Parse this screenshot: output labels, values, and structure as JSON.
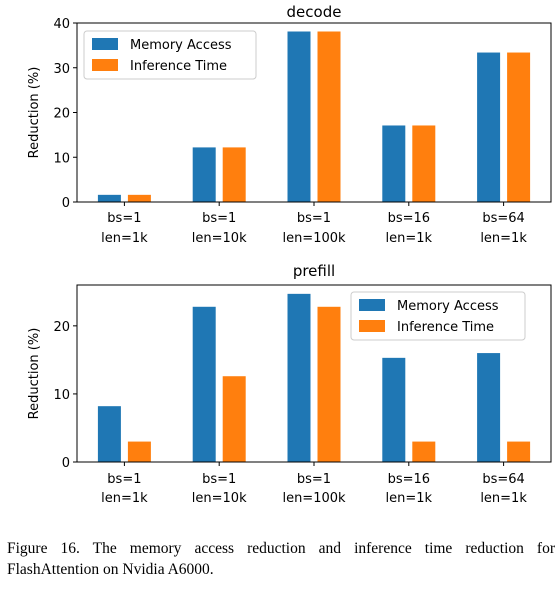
{
  "chart_data": [
    {
      "type": "bar",
      "title": "decode",
      "ylabel": "Reduction (%)",
      "categories": [
        [
          "bs=1",
          "len=1k"
        ],
        [
          "bs=1",
          "len=10k"
        ],
        [
          "bs=1",
          "len=100k"
        ],
        [
          "bs=16",
          "len=1k"
        ],
        [
          "bs=64",
          "len=1k"
        ]
      ],
      "series": [
        {
          "name": "Memory Access",
          "color": "#1f77b4",
          "values": [
            1.6,
            12.2,
            38.1,
            17.1,
            33.4
          ]
        },
        {
          "name": "Inference Time",
          "color": "#ff7f0e",
          "values": [
            1.6,
            12.2,
            38.1,
            17.1,
            33.4
          ]
        }
      ],
      "ylim": [
        0,
        40
      ],
      "yticks": [
        0,
        10,
        20,
        30,
        40
      ],
      "legend": "top-left",
      "grid": false
    },
    {
      "type": "bar",
      "title": "prefill",
      "ylabel": "Reduction (%)",
      "categories": [
        [
          "bs=1",
          "len=1k"
        ],
        [
          "bs=1",
          "len=10k"
        ],
        [
          "bs=1",
          "len=100k"
        ],
        [
          "bs=16",
          "len=1k"
        ],
        [
          "bs=64",
          "len=1k"
        ]
      ],
      "series": [
        {
          "name": "Memory Access",
          "color": "#1f77b4",
          "values": [
            8.2,
            22.8,
            24.7,
            15.3,
            16.0
          ]
        },
        {
          "name": "Inference Time",
          "color": "#ff7f0e",
          "values": [
            3.0,
            12.6,
            22.8,
            3.0,
            3.0
          ]
        }
      ],
      "ylim": [
        0,
        26
      ],
      "yticks": [
        0,
        10,
        20
      ],
      "legend": "top-right",
      "grid": false
    }
  ],
  "caption": "Figure 16.  The memory access reduction and inference time reduction for FlashAttention on Nvidia A6000."
}
